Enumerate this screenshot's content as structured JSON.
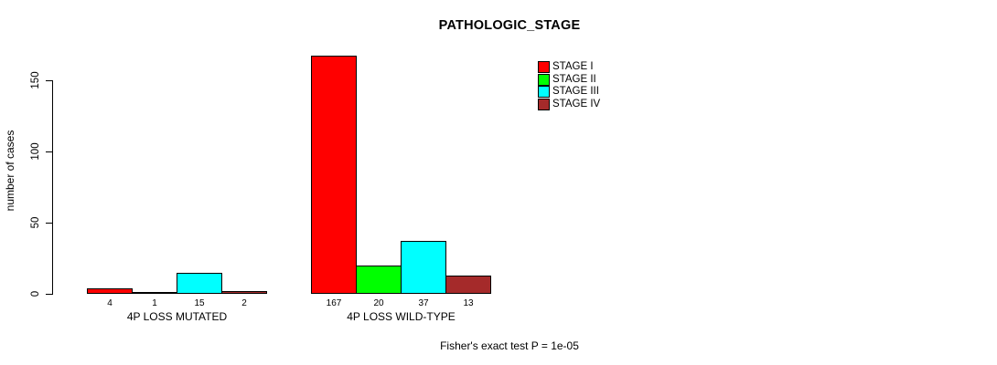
{
  "title": "PATHOLOGIC_STAGE",
  "footer": "Fisher's exact test P = 1e-05",
  "colors": {
    "stage_i": "#FF0000",
    "stage_ii": "#00FF00",
    "stage_iii": "#00FFFF",
    "stage_iv": "#A52A2A",
    "axis": "#000000",
    "background": "#FFFFFF"
  },
  "chart_data": {
    "type": "bar",
    "title": "PATHOLOGIC_STAGE",
    "xlabel": "",
    "ylabel": "number of cases",
    "ylim": [
      0,
      150
    ],
    "yticks": [
      0,
      50,
      100,
      150
    ],
    "grid": false,
    "legend_position": "top-right",
    "categories": [
      "4P LOSS MUTATED",
      "4P LOSS WILD-TYPE"
    ],
    "series": [
      {
        "name": "STAGE I",
        "color": "#FF0000",
        "values": [
          4,
          167
        ]
      },
      {
        "name": "STAGE II",
        "color": "#00FF00",
        "values": [
          1,
          20
        ]
      },
      {
        "name": "STAGE III",
        "color": "#00FFFF",
        "values": [
          15,
          37
        ]
      },
      {
        "name": "STAGE IV",
        "color": "#A52A2A",
        "values": [
          2,
          13
        ]
      }
    ],
    "bar_value_labels": [
      [
        4,
        1,
        15,
        2
      ],
      [
        167,
        20,
        37,
        13
      ]
    ],
    "annotation": "Fisher's exact test P = 1e-05"
  }
}
